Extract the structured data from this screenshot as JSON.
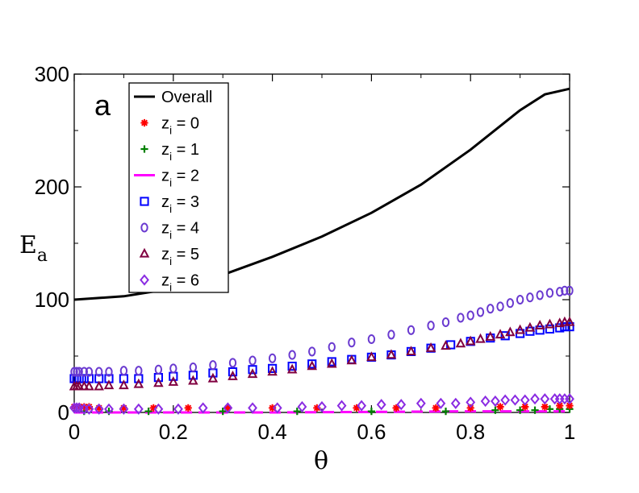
{
  "chart_data": {
    "type": "line+scatter",
    "panel_label": "a",
    "xlabel": "θ",
    "ylabel": "E",
    "ylabel_sub": "a",
    "xlim": [
      0,
      1
    ],
    "ylim": [
      0,
      300
    ],
    "xticks": [
      0,
      0.2,
      0.4,
      0.6,
      0.8,
      1
    ],
    "xtick_labels": [
      "0",
      "0.2",
      "0.4",
      "0.6",
      "0.8",
      "1"
    ],
    "yticks": [
      0,
      100,
      200,
      300
    ],
    "ytick_labels": [
      "0",
      "100",
      "200",
      "300"
    ],
    "legend_position": "top-left",
    "legend": [
      {
        "key": "overall",
        "text": "Overall",
        "base": "Overall",
        "sub": "",
        "rest": ""
      },
      {
        "key": "z0",
        "text": "zi = 0",
        "base": "z",
        "sub": "i",
        "rest": " = 0"
      },
      {
        "key": "z1",
        "text": "zi = 1",
        "base": "z",
        "sub": "i",
        "rest": " = 1"
      },
      {
        "key": "z2",
        "text": "zi = 2",
        "base": "z",
        "sub": "i",
        "rest": " = 2"
      },
      {
        "key": "z3",
        "text": "zi = 3",
        "base": "z",
        "sub": "i",
        "rest": " = 3"
      },
      {
        "key": "z4",
        "text": "zi = 4",
        "base": "z",
        "sub": "i",
        "rest": " = 4"
      },
      {
        "key": "z5",
        "text": "zi = 5",
        "base": "z",
        "sub": "i",
        "rest": " = 5"
      },
      {
        "key": "z6",
        "text": "zi  = 6",
        "base": "z",
        "sub": "i",
        "rest": "  = 6"
      }
    ],
    "series": [
      {
        "key": "overall",
        "name": "Overall",
        "style": "line",
        "color": "#000000",
        "x": [
          0,
          0.1,
          0.2,
          0.3,
          0.4,
          0.5,
          0.6,
          0.7,
          0.8,
          0.9,
          0.95,
          1.0
        ],
        "y": [
          100,
          103,
          110,
          122,
          138,
          156,
          177,
          202,
          233,
          268,
          282,
          287
        ]
      },
      {
        "key": "z0",
        "name": "zi = 0",
        "style": "marker",
        "marker": "asterisk",
        "color": "#ff0000",
        "x": [
          0,
          0.01,
          0.02,
          0.03,
          0.05,
          0.1,
          0.16,
          0.23,
          0.31,
          0.4,
          0.49,
          0.57,
          0.65,
          0.73,
          0.8,
          0.86,
          0.91,
          0.95,
          0.98,
          1.0
        ],
        "y": [
          5,
          5,
          5,
          5,
          4,
          4,
          4,
          4,
          4,
          4,
          4,
          4,
          4,
          4,
          4,
          5,
          5,
          5,
          6,
          6
        ]
      },
      {
        "key": "z1",
        "name": "zi = 1",
        "style": "marker",
        "marker": "plus",
        "color": "#008000",
        "x": [
          0.02,
          0.07,
          0.15,
          0.3,
          0.45,
          0.6,
          0.75,
          0.85,
          0.9,
          0.93,
          0.96,
          0.98,
          1.0
        ],
        "y": [
          1,
          1,
          1,
          1,
          1,
          1,
          1,
          2,
          2,
          2,
          3,
          3,
          3
        ]
      },
      {
        "key": "z2",
        "name": "zi = 2",
        "style": "dashed",
        "color": "#ff00ff",
        "x": [
          0,
          0.2,
          0.4,
          0.6,
          0.8,
          0.9,
          1.0
        ],
        "y": [
          0,
          0,
          0,
          0.5,
          1,
          1,
          1
        ]
      },
      {
        "key": "z3",
        "name": "zi = 3",
        "style": "marker",
        "marker": "square",
        "color": "#0000ff",
        "x": [
          0,
          0.005,
          0.01,
          0.02,
          0.03,
          0.05,
          0.07,
          0.1,
          0.13,
          0.17,
          0.2,
          0.24,
          0.28,
          0.32,
          0.36,
          0.4,
          0.44,
          0.48,
          0.52,
          0.56,
          0.6,
          0.64,
          0.68,
          0.72,
          0.76,
          0.8,
          0.84,
          0.87,
          0.9,
          0.92,
          0.94,
          0.96,
          0.98,
          0.99,
          1.0
        ],
        "y": [
          30,
          30,
          30,
          30,
          30,
          30,
          30,
          30,
          30,
          31,
          32,
          33,
          35,
          36,
          38,
          39,
          41,
          43,
          45,
          47,
          49,
          51,
          54,
          57,
          60,
          63,
          66,
          68,
          70,
          72,
          73,
          74,
          75,
          76,
          76
        ]
      },
      {
        "key": "z4",
        "name": "zi = 4",
        "style": "marker",
        "marker": "circle",
        "color": "#6a3ad0",
        "x": [
          0,
          0.005,
          0.01,
          0.02,
          0.03,
          0.05,
          0.07,
          0.1,
          0.13,
          0.17,
          0.2,
          0.24,
          0.28,
          0.32,
          0.36,
          0.4,
          0.44,
          0.48,
          0.52,
          0.56,
          0.6,
          0.64,
          0.68,
          0.72,
          0.75,
          0.78,
          0.8,
          0.82,
          0.84,
          0.86,
          0.88,
          0.9,
          0.92,
          0.94,
          0.96,
          0.98,
          0.99,
          1.0
        ],
        "y": [
          36,
          36,
          36,
          36,
          36,
          36,
          36,
          37,
          37,
          38,
          39,
          40,
          42,
          44,
          46,
          48,
          51,
          54,
          58,
          62,
          65,
          69,
          73,
          77,
          80,
          84,
          86,
          89,
          92,
          94,
          97,
          100,
          102,
          104,
          106,
          107,
          108,
          108
        ]
      },
      {
        "key": "z5",
        "name": "zi = 5",
        "style": "marker",
        "marker": "triangle",
        "color": "#800040",
        "x": [
          0,
          0.005,
          0.01,
          0.02,
          0.03,
          0.05,
          0.07,
          0.1,
          0.13,
          0.17,
          0.2,
          0.24,
          0.28,
          0.32,
          0.36,
          0.4,
          0.44,
          0.48,
          0.52,
          0.56,
          0.6,
          0.64,
          0.68,
          0.72,
          0.75,
          0.78,
          0.8,
          0.82,
          0.84,
          0.86,
          0.88,
          0.9,
          0.92,
          0.94,
          0.96,
          0.98,
          0.99,
          1.0
        ],
        "y": [
          23,
          23,
          23,
          23,
          23,
          23,
          24,
          24,
          25,
          26,
          27,
          28,
          30,
          32,
          34,
          36,
          38,
          41,
          43,
          46,
          49,
          51,
          54,
          57,
          59,
          61,
          63,
          65,
          67,
          69,
          71,
          73,
          75,
          77,
          78,
          79,
          80,
          80
        ]
      },
      {
        "key": "z6",
        "name": "zi  = 6",
        "style": "marker",
        "marker": "diamond",
        "color": "#8a2be2",
        "x": [
          0,
          0.005,
          0.01,
          0.02,
          0.03,
          0.05,
          0.07,
          0.1,
          0.13,
          0.17,
          0.21,
          0.26,
          0.31,
          0.36,
          0.41,
          0.46,
          0.5,
          0.54,
          0.58,
          0.62,
          0.66,
          0.7,
          0.74,
          0.77,
          0.8,
          0.83,
          0.85,
          0.87,
          0.89,
          0.91,
          0.93,
          0.95,
          0.97,
          0.98,
          0.99,
          1.0
        ],
        "y": [
          4,
          4,
          4,
          3,
          3,
          3,
          3,
          3,
          3,
          3,
          3,
          4,
          4,
          4,
          4,
          5,
          5,
          6,
          6,
          7,
          7,
          8,
          8,
          8,
          9,
          10,
          10,
          11,
          11,
          11,
          12,
          12,
          12,
          12,
          12,
          12
        ]
      }
    ]
  }
}
